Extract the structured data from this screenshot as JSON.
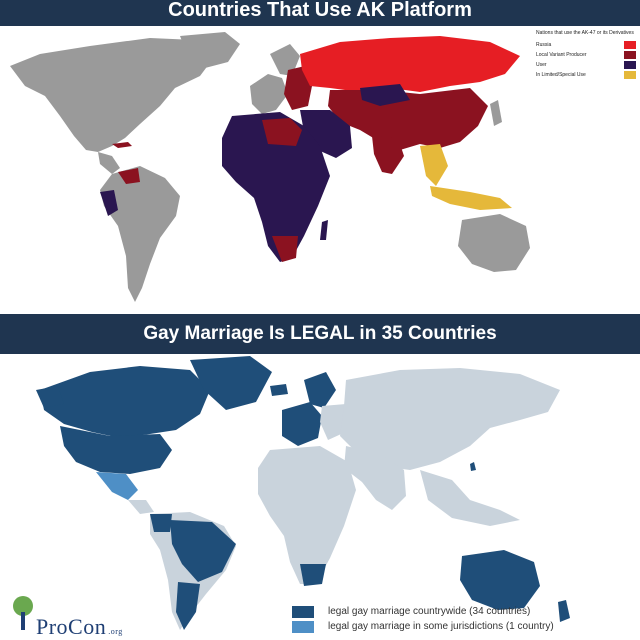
{
  "top": {
    "title": "Countries That Use AK Platform",
    "legend_header": "Nations that use the AK-47 or its Derivatives",
    "legend": [
      {
        "label": "Russia",
        "color": "#e61e24"
      },
      {
        "label": "Local Variant Producer",
        "color": "#8b1220"
      },
      {
        "label": "User",
        "color": "#2a1650"
      },
      {
        "label": "In Limited/Special Use",
        "color": "#e5b83a"
      }
    ],
    "other_color": "#9a9a9a"
  },
  "bottom": {
    "title": "Gay Marriage Is LEGAL in 35 Countries",
    "legend": [
      {
        "label": "legal gay marriage countrywide (34 countries)",
        "color": "#1f4e79"
      },
      {
        "label": "legal gay marriage in some jurisdictions (1 country)",
        "color": "#4e8fc6"
      }
    ],
    "other_color": "#c9d3dc",
    "logo": {
      "name": "ProCon",
      "suffix": ".org"
    }
  }
}
